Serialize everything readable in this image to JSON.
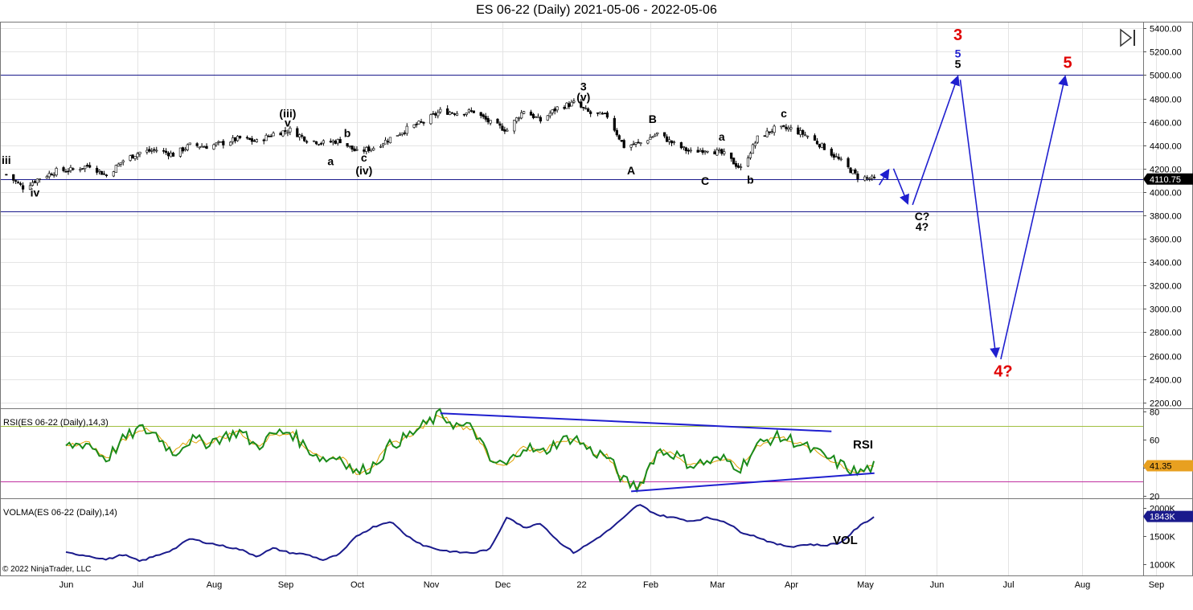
{
  "window": {
    "title": "ES 06-22 (Daily)  2021-05-06 - 2022-05-06"
  },
  "colors": {
    "candle_up": "#ffffff",
    "candle_down": "#000000",
    "wave_blue": "#1f1fcf",
    "wave_red": "#e00000",
    "hline_blue": "#1a1a8c",
    "rsi_line": "#1a8a1a",
    "rsi_avg": "#e0a000",
    "vol_line": "#1a1a8c",
    "grid": "#e4e4e4",
    "rsi_upper": "#a0c040",
    "rsi_lower": "#c030a0",
    "price_marker": "#000000",
    "rsi_marker": "#e8a020",
    "vol_marker": "#1a1a8c"
  },
  "copyright": "© 2022 NinjaTrader, LLC",
  "chart_data": [
    {
      "type": "candlestick",
      "title": "ES 06-22 (Daily)  2021-05-06 - 2022-05-06",
      "ylim": [
        2150,
        5450
      ],
      "yticks": [
        "2200.00",
        "2400.00",
        "2600.00",
        "2800.00",
        "3000.00",
        "3200.00",
        "3400.00",
        "3600.00",
        "3800.00",
        "4000.00",
        "4200.00",
        "4400.00",
        "4600.00",
        "4800.00",
        "5000.00",
        "5200.00",
        "5400.00"
      ],
      "xtick_labels": [
        "Jun",
        "Jul",
        "Aug",
        "Sep",
        "Oct",
        "Nov",
        "Dec",
        "22",
        "Feb",
        "Mar",
        "Apr",
        "May",
        "Jun",
        "Jul",
        "Aug",
        "Sep"
      ],
      "xtick_dates": [
        "2021-06-01",
        "2021-07-01",
        "2021-08-02",
        "2021-09-01",
        "2021-10-01",
        "2021-11-01",
        "2021-12-01",
        "2022-01-03",
        "2022-02-01",
        "2022-03-01",
        "2022-04-01",
        "2022-05-02",
        "2022-06-01",
        "2022-07-01",
        "2022-08-01",
        "2022-09-01"
      ],
      "last_price": "4110.75",
      "hlines": [
        5000,
        4110,
        3835
      ],
      "closes_weekly": [
        [
          "2021-05-07",
          4150
        ],
        [
          "2021-05-14",
          4040
        ],
        [
          "2021-05-21",
          4120
        ],
        [
          "2021-05-28",
          4180
        ],
        [
          "2021-06-04",
          4190
        ],
        [
          "2021-06-11",
          4230
        ],
        [
          "2021-06-18",
          4140
        ],
        [
          "2021-06-25",
          4270
        ],
        [
          "2021-07-02",
          4340
        ],
        [
          "2021-07-09",
          4360
        ],
        [
          "2021-07-16",
          4320
        ],
        [
          "2021-07-23",
          4400
        ],
        [
          "2021-07-30",
          4390
        ],
        [
          "2021-08-06",
          4420
        ],
        [
          "2021-08-13",
          4460
        ],
        [
          "2021-08-20",
          4430
        ],
        [
          "2021-08-27",
          4500
        ],
        [
          "2021-09-03",
          4530
        ],
        [
          "2021-09-10",
          4450
        ],
        [
          "2021-09-17",
          4420
        ],
        [
          "2021-09-24",
          4440
        ],
        [
          "2021-10-01",
          4340
        ],
        [
          "2021-10-08",
          4380
        ],
        [
          "2021-10-15",
          4460
        ],
        [
          "2021-10-22",
          4540
        ],
        [
          "2021-10-29",
          4600
        ],
        [
          "2021-11-05",
          4690
        ],
        [
          "2021-11-12",
          4680
        ],
        [
          "2021-11-19",
          4690
        ],
        [
          "2021-11-26",
          4590
        ],
        [
          "2021-12-03",
          4530
        ],
        [
          "2021-12-10",
          4700
        ],
        [
          "2021-12-17",
          4610
        ],
        [
          "2021-12-24",
          4720
        ],
        [
          "2021-12-31",
          4760
        ],
        [
          "2022-01-07",
          4670
        ],
        [
          "2022-01-14",
          4650
        ],
        [
          "2022-01-21",
          4390
        ],
        [
          "2022-01-28",
          4420
        ],
        [
          "2022-02-04",
          4500
        ],
        [
          "2022-02-11",
          4410
        ],
        [
          "2022-02-18",
          4340
        ],
        [
          "2022-02-25",
          4370
        ],
        [
          "2022-03-04",
          4320
        ],
        [
          "2022-03-11",
          4200
        ],
        [
          "2022-03-18",
          4460
        ],
        [
          "2022-03-25",
          4540
        ],
        [
          "2022-04-01",
          4540
        ],
        [
          "2022-04-08",
          4480
        ],
        [
          "2022-04-15",
          4380
        ],
        [
          "2022-04-22",
          4260
        ],
        [
          "2022-04-29",
          4130
        ],
        [
          "2022-05-06",
          4110
        ]
      ],
      "annotations": [
        {
          "text": "iii",
          "date": "2021-05-07",
          "price": 4240,
          "color": "black"
        },
        {
          "text": "iv",
          "date": "2021-05-19",
          "price": 3960,
          "color": "black"
        },
        {
          "text": "(iii)",
          "date": "2021-09-02",
          "price": 4640,
          "color": "black"
        },
        {
          "text": "v",
          "date": "2021-09-02",
          "price": 4560,
          "color": "black"
        },
        {
          "text": "a",
          "date": "2021-09-20",
          "price": 4230,
          "color": "black"
        },
        {
          "text": "b",
          "date": "2021-09-27",
          "price": 4470,
          "color": "black"
        },
        {
          "text": "c",
          "date": "2021-10-04",
          "price": 4260,
          "color": "black"
        },
        {
          "text": "(iv)",
          "date": "2021-10-04",
          "price": 4150,
          "color": "black"
        },
        {
          "text": "3",
          "date": "2022-01-04",
          "price": 4870,
          "color": "black"
        },
        {
          "text": "(v)",
          "date": "2022-01-04",
          "price": 4780,
          "color": "black"
        },
        {
          "text": "A",
          "date": "2022-01-24",
          "price": 4150,
          "color": "black"
        },
        {
          "text": "B",
          "date": "2022-02-02",
          "price": 4590,
          "color": "black"
        },
        {
          "text": "C",
          "date": "2022-02-24",
          "price": 4060,
          "color": "black"
        },
        {
          "text": "a",
          "date": "2022-03-03",
          "price": 4440,
          "color": "black"
        },
        {
          "text": "b",
          "date": "2022-03-15",
          "price": 4070,
          "color": "black"
        },
        {
          "text": "c",
          "date": "2022-03-29",
          "price": 4640,
          "color": "black"
        },
        {
          "text": "C?",
          "date": "2022-05-26",
          "price": 3760,
          "color": "black"
        },
        {
          "text": "4?",
          "date": "2022-05-26",
          "price": 3670,
          "color": "black"
        },
        {
          "text": "3",
          "date": "2022-06-10",
          "price": 5300,
          "color": "red"
        },
        {
          "text": "5",
          "date": "2022-06-10",
          "price": 5150,
          "color": "blue"
        },
        {
          "text": "5",
          "date": "2022-06-10",
          "price": 5060,
          "color": "black"
        },
        {
          "text": "5",
          "date": "2022-07-26",
          "price": 5060,
          "color": "red"
        },
        {
          "text": "4?",
          "date": "2022-06-29",
          "price": 2420,
          "color": "red"
        }
      ],
      "projection_arrows": [
        {
          "from": [
            "2022-05-08",
            4060
          ],
          "to": [
            "2022-05-12",
            4190
          ],
          "color": "blue"
        },
        {
          "from": [
            "2022-05-14",
            4200
          ],
          "to": [
            "2022-05-20",
            3900
          ],
          "color": "blue"
        },
        {
          "from": [
            "2022-05-22",
            3890
          ],
          "to": [
            "2022-06-10",
            4990
          ],
          "color": "blue"
        },
        {
          "from": [
            "2022-06-11",
            4960
          ],
          "to": [
            "2022-06-26",
            2590
          ],
          "color": "blue"
        },
        {
          "from": [
            "2022-06-28",
            2570
          ],
          "to": [
            "2022-07-25",
            4990
          ],
          "color": "blue"
        }
      ]
    },
    {
      "type": "line",
      "title": "RSI(ES 06-22 (Daily),14,3)",
      "label": "RSI",
      "ylim": [
        18,
        82
      ],
      "yticks": [
        "20",
        "40",
        "60",
        "80"
      ],
      "hlines": [
        70,
        30
      ],
      "last_value": "41.35",
      "values_weekly": [
        [
          "2021-06-01",
          55
        ],
        [
          "2021-06-10",
          58
        ],
        [
          "2021-06-18",
          46
        ],
        [
          "2021-06-25",
          60
        ],
        [
          "2021-07-02",
          68
        ],
        [
          "2021-07-09",
          64
        ],
        [
          "2021-07-16",
          50
        ],
        [
          "2021-07-23",
          60
        ],
        [
          "2021-07-30",
          58
        ],
        [
          "2021-08-06",
          62
        ],
        [
          "2021-08-13",
          66
        ],
        [
          "2021-08-20",
          55
        ],
        [
          "2021-08-27",
          64
        ],
        [
          "2021-09-03",
          66
        ],
        [
          "2021-09-10",
          54
        ],
        [
          "2021-09-17",
          46
        ],
        [
          "2021-09-24",
          48
        ],
        [
          "2021-10-01",
          36
        ],
        [
          "2021-10-08",
          42
        ],
        [
          "2021-10-15",
          56
        ],
        [
          "2021-10-22",
          62
        ],
        [
          "2021-10-29",
          70
        ],
        [
          "2021-11-05",
          78
        ],
        [
          "2021-11-12",
          70
        ],
        [
          "2021-11-19",
          68
        ],
        [
          "2021-11-26",
          44
        ],
        [
          "2021-12-03",
          42
        ],
        [
          "2021-12-10",
          56
        ],
        [
          "2021-12-17",
          50
        ],
        [
          "2021-12-24",
          58
        ],
        [
          "2021-12-31",
          62
        ],
        [
          "2022-01-07",
          52
        ],
        [
          "2022-01-14",
          48
        ],
        [
          "2022-01-21",
          30
        ],
        [
          "2022-01-27",
          26
        ],
        [
          "2022-02-04",
          52
        ],
        [
          "2022-02-11",
          50
        ],
        [
          "2022-02-18",
          42
        ],
        [
          "2022-02-25",
          44
        ],
        [
          "2022-03-04",
          46
        ],
        [
          "2022-03-11",
          40
        ],
        [
          "2022-03-18",
          56
        ],
        [
          "2022-03-25",
          62
        ],
        [
          "2022-04-01",
          60
        ],
        [
          "2022-04-08",
          54
        ],
        [
          "2022-04-15",
          48
        ],
        [
          "2022-04-22",
          42
        ],
        [
          "2022-04-29",
          36
        ],
        [
          "2022-05-06",
          41
        ]
      ],
      "trendlines": [
        {
          "from": [
            "2021-11-05",
            79
          ],
          "to": [
            "2022-04-18",
            66
          ]
        },
        {
          "from": [
            "2022-01-24",
            23
          ],
          "to": [
            "2022-05-06",
            36
          ]
        }
      ]
    },
    {
      "type": "line",
      "title": "VOLMA(ES 06-22 (Daily),14)",
      "label": "VOL",
      "ylim": [
        800000,
        2150000
      ],
      "yticks": [
        "1000K",
        "1500K",
        "2000K"
      ],
      "last_value": "1843K",
      "values_weekly": [
        [
          "2021-06-01",
          1200000
        ],
        [
          "2021-06-10",
          1150000
        ],
        [
          "2021-06-18",
          1080000
        ],
        [
          "2021-06-25",
          1170000
        ],
        [
          "2021-07-02",
          1050000
        ],
        [
          "2021-07-09",
          1150000
        ],
        [
          "2021-07-16",
          1260000
        ],
        [
          "2021-07-23",
          1450000
        ],
        [
          "2021-07-30",
          1380000
        ],
        [
          "2021-08-06",
          1320000
        ],
        [
          "2021-08-13",
          1260000
        ],
        [
          "2021-08-20",
          1140000
        ],
        [
          "2021-08-27",
          1280000
        ],
        [
          "2021-09-03",
          1200000
        ],
        [
          "2021-09-10",
          1170000
        ],
        [
          "2021-09-17",
          1070000
        ],
        [
          "2021-09-24",
          1180000
        ],
        [
          "2021-10-01",
          1500000
        ],
        [
          "2021-10-08",
          1660000
        ],
        [
          "2021-10-15",
          1760000
        ],
        [
          "2021-10-22",
          1500000
        ],
        [
          "2021-10-29",
          1330000
        ],
        [
          "2021-11-05",
          1250000
        ],
        [
          "2021-11-12",
          1210000
        ],
        [
          "2021-11-19",
          1200000
        ],
        [
          "2021-11-26",
          1270000
        ],
        [
          "2021-12-03",
          1850000
        ],
        [
          "2021-12-10",
          1640000
        ],
        [
          "2021-12-17",
          1730000
        ],
        [
          "2021-12-24",
          1420000
        ],
        [
          "2021-12-31",
          1200000
        ],
        [
          "2022-01-07",
          1380000
        ],
        [
          "2022-01-14",
          1580000
        ],
        [
          "2022-01-21",
          1820000
        ],
        [
          "2022-01-27",
          2060000
        ],
        [
          "2022-02-04",
          1870000
        ],
        [
          "2022-02-11",
          1820000
        ],
        [
          "2022-02-18",
          1760000
        ],
        [
          "2022-02-25",
          1820000
        ],
        [
          "2022-03-04",
          1760000
        ],
        [
          "2022-03-11",
          1570000
        ],
        [
          "2022-03-18",
          1480000
        ],
        [
          "2022-03-25",
          1360000
        ],
        [
          "2022-04-01",
          1310000
        ],
        [
          "2022-04-08",
          1350000
        ],
        [
          "2022-04-15",
          1330000
        ],
        [
          "2022-04-22",
          1380000
        ],
        [
          "2022-04-29",
          1650000
        ],
        [
          "2022-05-06",
          1843000
        ]
      ]
    }
  ]
}
